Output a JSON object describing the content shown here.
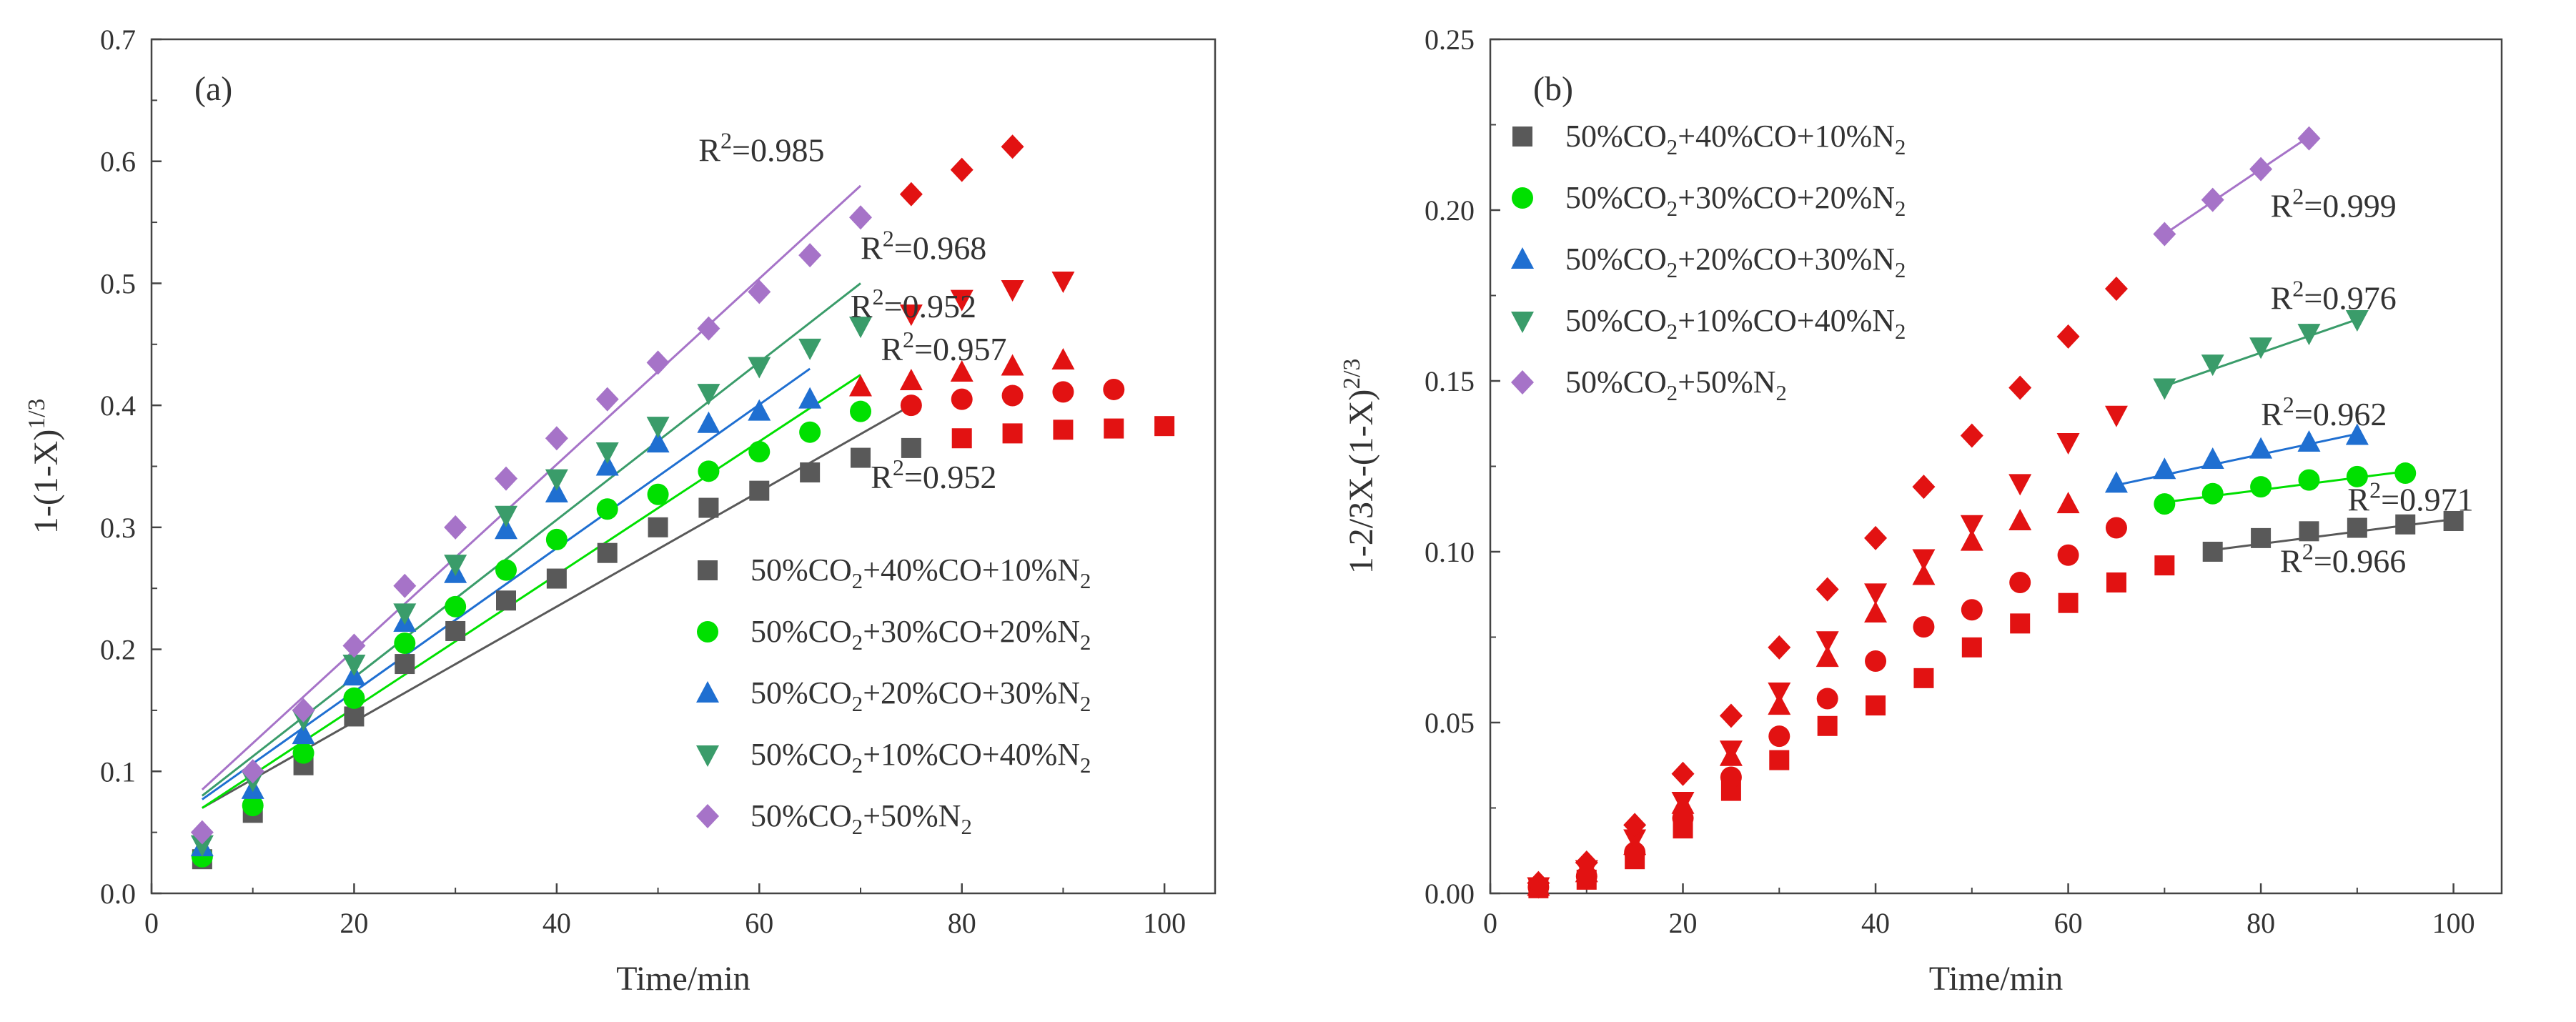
{
  "chart_data": [
    {
      "type": "scatter",
      "panel_label": "(a)",
      "xlabel": "Time/min",
      "ylabel": "1-(1-X)^{1/3}",
      "xlim": [
        0,
        105
      ],
      "ylim": [
        0,
        0.7
      ],
      "xticks": [
        0,
        20,
        40,
        60,
        80,
        100
      ],
      "yticks": [
        0.0,
        0.1,
        0.2,
        0.3,
        0.4,
        0.5,
        0.6,
        0.7
      ],
      "tick_labels_x": [
        "0",
        "20",
        "40",
        "60",
        "80",
        "100"
      ],
      "tick_labels_y": [
        "0.0",
        "0.1",
        "0.2",
        "0.3",
        "0.4",
        "0.5",
        "0.6",
        "0.7"
      ],
      "legend_position": "bottom-right",
      "grid": false,
      "series": [
        {
          "name": "50%CO_2+40%CO+10%N_2",
          "marker": "square",
          "color": "#595959",
          "x": [
            5,
            10,
            15,
            20,
            25,
            30,
            35,
            40,
            45,
            50,
            55,
            60,
            65,
            70,
            75
          ],
          "y": [
            0.028,
            0.066,
            0.105,
            0.145,
            0.188,
            0.215,
            0.24,
            0.258,
            0.279,
            0.3,
            0.316,
            0.33,
            0.345,
            0.357,
            0.365
          ],
          "tail_x": [
            80,
            85,
            90,
            95,
            100
          ],
          "tail_y": [
            0.373,
            0.377,
            0.38,
            0.381,
            0.383
          ],
          "fit": {
            "x": [
              5,
              75
            ],
            "y": [
              0.07,
              0.4
            ]
          }
        },
        {
          "name": "50%CO_2+30%CO+20%N_2",
          "marker": "circle",
          "color": "#00e000",
          "x": [
            5,
            10,
            15,
            20,
            25,
            30,
            35,
            40,
            45,
            50,
            55,
            60,
            65,
            70
          ],
          "y": [
            0.03,
            0.072,
            0.115,
            0.16,
            0.205,
            0.235,
            0.265,
            0.29,
            0.315,
            0.327,
            0.346,
            0.362,
            0.378,
            0.395
          ],
          "tail_x": [
            75,
            80,
            85,
            90,
            95
          ],
          "tail_y": [
            0.4,
            0.405,
            0.408,
            0.411,
            0.413
          ],
          "fit": {
            "x": [
              5,
              70
            ],
            "y": [
              0.07,
              0.425
            ]
          }
        },
        {
          "name": "50%CO_2+20%CO+30%N_2",
          "marker": "triangle-up",
          "color": "#1f6fd1",
          "x": [
            5,
            10,
            15,
            20,
            25,
            30,
            35,
            40,
            45,
            50,
            55,
            60,
            65
          ],
          "y": [
            0.038,
            0.085,
            0.13,
            0.178,
            0.222,
            0.262,
            0.298,
            0.328,
            0.35,
            0.369,
            0.385,
            0.395,
            0.405
          ],
          "tail_x": [
            70,
            75,
            80,
            85,
            90
          ],
          "tail_y": [
            0.415,
            0.42,
            0.427,
            0.432,
            0.437
          ],
          "fit": {
            "x": [
              5,
              65
            ],
            "y": [
              0.077,
              0.43
            ]
          }
        },
        {
          "name": "50%CO_2+10%CO+40%N_2",
          "marker": "triangle-down",
          "color": "#3a9c6a",
          "x": [
            5,
            10,
            15,
            20,
            25,
            30,
            35,
            40,
            45,
            50,
            55,
            60,
            65,
            70
          ],
          "y": [
            0.04,
            0.093,
            0.143,
            0.188,
            0.23,
            0.27,
            0.31,
            0.34,
            0.362,
            0.383,
            0.41,
            0.432,
            0.447,
            0.465
          ],
          "tail_x": [
            75,
            80,
            85,
            90
          ],
          "tail_y": [
            0.475,
            0.487,
            0.495,
            0.502
          ],
          "fit": {
            "x": [
              5,
              70
            ],
            "y": [
              0.08,
              0.5
            ]
          }
        },
        {
          "name": "50%CO_2+50%N_2",
          "marker": "diamond",
          "color": "#a673c8",
          "x": [
            5,
            10,
            15,
            20,
            25,
            30,
            35,
            40,
            45,
            50,
            55,
            60,
            65,
            70
          ],
          "y": [
            0.05,
            0.1,
            0.15,
            0.203,
            0.252,
            0.3,
            0.34,
            0.373,
            0.405,
            0.435,
            0.463,
            0.493,
            0.523,
            0.554
          ],
          "tail_x": [
            75,
            80,
            85
          ],
          "tail_y": [
            0.573,
            0.593,
            0.612
          ],
          "fit": {
            "x": [
              5,
              70
            ],
            "y": [
              0.085,
              0.58
            ]
          }
        }
      ],
      "tail_color": "#e21212",
      "annotations": [
        {
          "text": "R^2=0.985",
          "x": 54,
          "y": 0.6
        },
        {
          "text": "R^2=0.968",
          "x": 70,
          "y": 0.52
        },
        {
          "text": "R^2=0.952",
          "x": 69,
          "y": 0.472
        },
        {
          "text": "R^2=0.957",
          "x": 72,
          "y": 0.437
        },
        {
          "text": "R^2=0.952",
          "x": 71,
          "y": 0.332
        }
      ]
    },
    {
      "type": "scatter",
      "panel_label": "(b)",
      "xlabel": "Time/min",
      "ylabel": "1-2/3X-(1-X)^{2/3}",
      "xlim": [
        0,
        105
      ],
      "ylim": [
        0,
        0.25
      ],
      "xticks": [
        0,
        20,
        40,
        60,
        80,
        100
      ],
      "yticks": [
        0.0,
        0.05,
        0.1,
        0.15,
        0.2,
        0.25
      ],
      "tick_labels_x": [
        "0",
        "20",
        "40",
        "60",
        "80",
        "100"
      ],
      "tick_labels_y": [
        "0.00",
        "0.05",
        "0.10",
        "0.15",
        "0.20",
        "0.25"
      ],
      "legend_position": "top-left",
      "grid": false,
      "series": [
        {
          "name": "50%CO_2+40%CO+10%N_2",
          "marker": "square",
          "color": "#595959",
          "head_x": [
            5,
            10,
            15,
            20,
            25,
            30,
            35,
            40,
            45,
            50,
            55,
            60,
            65,
            70
          ],
          "head_y": [
            0.0015,
            0.004,
            0.01,
            0.019,
            0.03,
            0.039,
            0.049,
            0.055,
            0.063,
            0.072,
            0.079,
            0.085,
            0.091,
            0.096
          ],
          "x": [
            75,
            80,
            85,
            90,
            95,
            100
          ],
          "y": [
            0.1,
            0.104,
            0.106,
            0.107,
            0.108,
            0.109
          ],
          "fit": {
            "x": [
              75,
              100
            ],
            "y": [
              0.1005,
              0.1095
            ]
          }
        },
        {
          "name": "50%CO_2+30%CO+20%N_2",
          "marker": "circle",
          "color": "#00e000",
          "head_x": [
            5,
            10,
            15,
            20,
            25,
            30,
            35,
            40,
            45,
            50,
            55,
            60,
            65
          ],
          "head_y": [
            0.0018,
            0.005,
            0.012,
            0.022,
            0.034,
            0.046,
            0.057,
            0.068,
            0.078,
            0.083,
            0.091,
            0.099,
            0.107
          ],
          "x": [
            70,
            75,
            80,
            85,
            90,
            95
          ],
          "y": [
            0.114,
            0.117,
            0.119,
            0.121,
            0.122,
            0.123
          ],
          "fit": {
            "x": [
              70,
              95
            ],
            "y": [
              0.1145,
              0.1235
            ]
          }
        },
        {
          "name": "50%CO_2+20%CO+30%N_2",
          "marker": "triangle-up",
          "color": "#1f6fd1",
          "head_x": [
            5,
            10,
            15,
            20,
            25,
            30,
            35,
            40,
            45,
            50,
            55,
            60
          ],
          "head_y": [
            0.002,
            0.006,
            0.014,
            0.026,
            0.04,
            0.055,
            0.069,
            0.082,
            0.093,
            0.103,
            0.109,
            0.114
          ],
          "x": [
            65,
            70,
            75,
            80,
            85,
            90
          ],
          "y": [
            0.12,
            0.124,
            0.127,
            0.13,
            0.132,
            0.134
          ],
          "fit": {
            "x": [
              65,
              90
            ],
            "y": [
              0.1195,
              0.1345
            ]
          }
        },
        {
          "name": "50%CO_2+10%CO+40%N_2",
          "marker": "triangle-down",
          "color": "#3a9c6a",
          "head_x": [
            5,
            10,
            15,
            20,
            25,
            30,
            35,
            40,
            45,
            50,
            55,
            60,
            65
          ],
          "head_y": [
            0.002,
            0.007,
            0.016,
            0.027,
            0.042,
            0.059,
            0.074,
            0.088,
            0.098,
            0.108,
            0.12,
            0.132,
            0.14
          ],
          "x": [
            70,
            75,
            80,
            85,
            90
          ],
          "y": [
            0.148,
            0.155,
            0.16,
            0.164,
            0.168
          ],
          "fit": {
            "x": [
              70,
              90
            ],
            "y": [
              0.1485,
              0.168
            ]
          }
        },
        {
          "name": "50%CO_2+50%N_2",
          "marker": "diamond",
          "color": "#a673c8",
          "head_x": [
            5,
            10,
            15,
            20,
            25,
            30,
            35,
            40,
            45,
            50,
            55,
            60,
            65
          ],
          "head_y": [
            0.003,
            0.009,
            0.02,
            0.035,
            0.052,
            0.072,
            0.089,
            0.104,
            0.119,
            0.134,
            0.148,
            0.163,
            0.177
          ],
          "x": [
            70,
            75,
            80,
            85
          ],
          "y": [
            0.193,
            0.203,
            0.212,
            0.221
          ],
          "fit": {
            "x": [
              70,
              85
            ],
            "y": [
              0.193,
              0.2215
            ]
          }
        }
      ],
      "tail_color": "#e21212",
      "annotations": [
        {
          "text": "R^2=0.999",
          "x": 81,
          "y": 0.198
        },
        {
          "text": "R^2=0.976",
          "x": 81,
          "y": 0.171
        },
        {
          "text": "R^2=0.962",
          "x": 80,
          "y": 0.137
        },
        {
          "text": "R^2=0.971",
          "x": 89,
          "y": 0.112
        },
        {
          "text": "R^2=0.966",
          "x": 82,
          "y": 0.094
        }
      ]
    }
  ]
}
